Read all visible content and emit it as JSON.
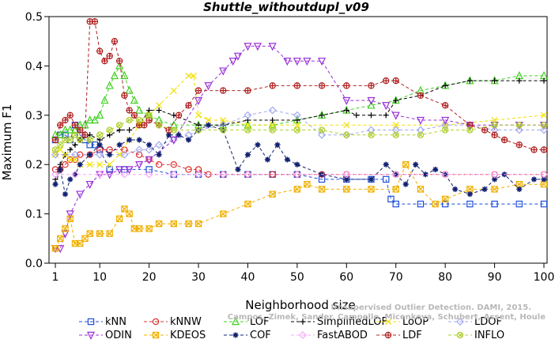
{
  "chart_data": {
    "type": "line",
    "title": "Shuttle_withoutdupl_v09",
    "xlabel": "Neighborhood size",
    "ylabel": "Maximum F1",
    "xlim": [
      0,
      100
    ],
    "ylim": [
      0,
      0.5
    ],
    "xticks": [
      1,
      10,
      20,
      30,
      40,
      50,
      60,
      70,
      80,
      90,
      100
    ],
    "yticks": [
      0.0,
      0.1,
      0.2,
      0.3,
      0.4,
      0.5
    ],
    "ytick_labels": [
      "0.0",
      "0.1",
      "0.2",
      "0.3",
      "0.4",
      "0.5"
    ],
    "grid": false,
    "legend_position": "bottom",
    "watermark": [
      "Unsupervised Outlier Detection. DAMI, 2015.",
      "Campos, Zimek, Sander, Campello, Micenkova, Schubert, Assent, Houle"
    ],
    "series": [
      {
        "name": "kNN",
        "color": "#1f4fd8",
        "marker": "square",
        "x": [
          1,
          2,
          3,
          4,
          5,
          6,
          7,
          8,
          9,
          10,
          12,
          15,
          20,
          25,
          30,
          35,
          40,
          45,
          50,
          55,
          60,
          65,
          68,
          69,
          70,
          75,
          80,
          85,
          90,
          95,
          100
        ],
        "y": [
          0.25,
          0.26,
          0.26,
          0.25,
          0.28,
          0.26,
          0.25,
          0.24,
          0.24,
          0.23,
          0.19,
          0.19,
          0.19,
          0.18,
          0.18,
          0.18,
          0.18,
          0.18,
          0.18,
          0.17,
          0.17,
          0.17,
          0.17,
          0.13,
          0.12,
          0.12,
          0.12,
          0.12,
          0.12,
          0.12,
          0.12
        ]
      },
      {
        "name": "kNNW",
        "color": "#e03030",
        "marker": "circle",
        "x": [
          1,
          2,
          3,
          4,
          5,
          6,
          8,
          10,
          12,
          15,
          18,
          20,
          22,
          25,
          28,
          30,
          32,
          35,
          40,
          45,
          50,
          55,
          60,
          70,
          80,
          90,
          100
        ],
        "y": [
          0.19,
          0.19,
          0.2,
          0.21,
          0.21,
          0.22,
          0.22,
          0.23,
          0.23,
          0.23,
          0.22,
          0.21,
          0.2,
          0.2,
          0.19,
          0.19,
          0.18,
          0.18,
          0.18,
          0.18,
          0.18,
          0.18,
          0.18,
          0.18,
          0.18,
          0.18,
          0.18
        ]
      },
      {
        "name": "LOF",
        "color": "#40d020",
        "marker": "triangle",
        "x": [
          1,
          2,
          3,
          4,
          5,
          6,
          7,
          8,
          9,
          10,
          11,
          12,
          13,
          14,
          15,
          16,
          17,
          18,
          20,
          22,
          25,
          30,
          35,
          40,
          45,
          50,
          55,
          60,
          65,
          70,
          75,
          80,
          85,
          90,
          95,
          100
        ],
        "y": [
          0.26,
          0.26,
          0.27,
          0.27,
          0.27,
          0.28,
          0.28,
          0.29,
          0.29,
          0.3,
          0.33,
          0.36,
          0.38,
          0.4,
          0.38,
          0.35,
          0.33,
          0.31,
          0.3,
          0.29,
          0.28,
          0.28,
          0.28,
          0.28,
          0.28,
          0.29,
          0.3,
          0.31,
          0.32,
          0.33,
          0.35,
          0.36,
          0.37,
          0.37,
          0.38,
          0.38
        ]
      },
      {
        "name": "SimplifiedLOF",
        "color": "#000000",
        "marker": "plus",
        "x": [
          1,
          2,
          3,
          4,
          5,
          6,
          8,
          10,
          12,
          14,
          16,
          18,
          20,
          22,
          25,
          30,
          35,
          40,
          45,
          50,
          55,
          60,
          62,
          65,
          68,
          70,
          75,
          80,
          85,
          90,
          95,
          100
        ],
        "y": [
          0.17,
          0.2,
          0.22,
          0.23,
          0.24,
          0.25,
          0.26,
          0.25,
          0.26,
          0.27,
          0.27,
          0.28,
          0.31,
          0.31,
          0.3,
          0.28,
          0.28,
          0.29,
          0.29,
          0.29,
          0.3,
          0.31,
          0.3,
          0.3,
          0.3,
          0.33,
          0.34,
          0.36,
          0.37,
          0.37,
          0.37,
          0.37
        ]
      },
      {
        "name": "LoOP",
        "color": "#f0e000",
        "marker": "cross",
        "x": [
          1,
          2,
          3,
          4,
          5,
          6,
          8,
          10,
          12,
          14,
          16,
          18,
          20,
          22,
          25,
          28,
          29,
          30,
          32,
          35,
          40,
          45,
          50,
          60,
          70,
          80,
          90,
          100
        ],
        "y": [
          0.22,
          0.23,
          0.22,
          0.21,
          0.21,
          0.2,
          0.2,
          0.2,
          0.2,
          0.22,
          0.25,
          0.28,
          0.3,
          0.32,
          0.35,
          0.38,
          0.38,
          0.3,
          0.29,
          0.29,
          0.28,
          0.28,
          0.28,
          0.28,
          0.28,
          0.28,
          0.29,
          0.3
        ]
      },
      {
        "name": "LDOF",
        "color": "#a0a8f0",
        "marker": "diamond",
        "x": [
          1,
          5,
          10,
          15,
          18,
          20,
          22,
          25,
          28,
          30,
          35,
          40,
          45,
          50,
          55,
          60,
          65,
          70,
          75,
          80,
          85,
          90,
          95,
          100
        ],
        "y": [
          0.22,
          0.22,
          0.22,
          0.22,
          0.23,
          0.23,
          0.24,
          0.25,
          0.26,
          0.27,
          0.28,
          0.3,
          0.31,
          0.3,
          0.26,
          0.26,
          0.27,
          0.27,
          0.27,
          0.28,
          0.28,
          0.27,
          0.27,
          0.27
        ]
      },
      {
        "name": "ODIN",
        "color": "#9a30d8",
        "marker": "triangle-down",
        "x": [
          1,
          2,
          3,
          4,
          6,
          8,
          10,
          12,
          14,
          16,
          18,
          20,
          25,
          30,
          32,
          35,
          37,
          38,
          40,
          42,
          45,
          48,
          50,
          52,
          55,
          60,
          65,
          68,
          70,
          75,
          80,
          85,
          90,
          95,
          100
        ],
        "y": [
          0.03,
          0.03,
          0.06,
          0.1,
          0.14,
          0.16,
          0.18,
          0.18,
          0.19,
          0.19,
          0.2,
          0.21,
          0.25,
          0.33,
          0.36,
          0.39,
          0.41,
          0.42,
          0.44,
          0.44,
          0.44,
          0.41,
          0.41,
          0.41,
          0.41,
          0.33,
          0.33,
          0.32,
          0.3,
          0.29,
          0.29,
          0.28,
          0.28,
          0.28,
          0.28
        ]
      },
      {
        "name": "KDEOS",
        "color": "#f0b000",
        "marker": "square-x",
        "x": [
          1,
          2,
          3,
          4,
          5,
          6,
          7,
          8,
          10,
          12,
          14,
          15,
          16,
          17,
          18,
          20,
          22,
          25,
          28,
          30,
          35,
          40,
          45,
          50,
          52,
          55,
          60,
          65,
          70,
          72,
          75,
          78,
          80,
          85,
          90,
          95,
          100
        ],
        "y": [
          0.03,
          0.05,
          0.07,
          0.09,
          0.04,
          0.04,
          0.05,
          0.06,
          0.06,
          0.06,
          0.09,
          0.11,
          0.1,
          0.07,
          0.07,
          0.07,
          0.08,
          0.08,
          0.08,
          0.08,
          0.1,
          0.12,
          0.14,
          0.15,
          0.16,
          0.15,
          0.15,
          0.15,
          0.15,
          0.2,
          0.15,
          0.12,
          0.13,
          0.15,
          0.15,
          0.16,
          0.16
        ]
      },
      {
        "name": "COF",
        "color": "#102070",
        "marker": "star",
        "x": [
          1,
          2,
          3,
          4,
          5,
          6,
          8,
          10,
          12,
          14,
          16,
          18,
          20,
          22,
          24,
          26,
          28,
          30,
          32,
          35,
          38,
          40,
          42,
          44,
          46,
          48,
          50,
          55,
          60,
          65,
          68,
          70,
          72,
          74,
          76,
          78,
          80,
          82,
          85,
          88,
          90,
          92,
          95,
          98,
          100
        ],
        "y": [
          0.16,
          0.19,
          0.14,
          0.17,
          0.18,
          0.2,
          0.22,
          0.24,
          0.22,
          0.24,
          0.25,
          0.25,
          0.24,
          0.22,
          0.26,
          0.26,
          0.25,
          0.27,
          0.28,
          0.27,
          0.19,
          0.22,
          0.24,
          0.21,
          0.24,
          0.21,
          0.2,
          0.18,
          0.17,
          0.17,
          0.2,
          0.18,
          0.16,
          0.2,
          0.18,
          0.19,
          0.18,
          0.15,
          0.14,
          0.15,
          0.17,
          0.18,
          0.15,
          0.17,
          0.17
        ]
      },
      {
        "name": "FastABOD",
        "color": "#f8a8f8",
        "marker": "diamond",
        "x": [
          1,
          5,
          10,
          15,
          20,
          25,
          30,
          35,
          40,
          50,
          60,
          70,
          80,
          90,
          100
        ],
        "y": [
          0.18,
          0.18,
          0.18,
          0.18,
          0.18,
          0.18,
          0.18,
          0.18,
          0.18,
          0.18,
          0.18,
          0.18,
          0.18,
          0.18,
          0.18
        ]
      },
      {
        "name": "LDF",
        "color": "#b02020",
        "marker": "circle-plus",
        "x": [
          1,
          2,
          3,
          4,
          5,
          6,
          7,
          8,
          9,
          10,
          11,
          12,
          13,
          14,
          15,
          16,
          17,
          18,
          19,
          20,
          22,
          24,
          26,
          28,
          30,
          35,
          40,
          45,
          50,
          55,
          60,
          65,
          68,
          70,
          75,
          80,
          85,
          88,
          90,
          92,
          95,
          98,
          100
        ],
        "y": [
          0.25,
          0.28,
          0.29,
          0.3,
          0.28,
          0.27,
          0.26,
          0.49,
          0.49,
          0.43,
          0.41,
          0.42,
          0.45,
          0.41,
          0.34,
          0.31,
          0.3,
          0.28,
          0.28,
          0.29,
          0.28,
          0.27,
          0.3,
          0.32,
          0.35,
          0.35,
          0.35,
          0.36,
          0.36,
          0.36,
          0.36,
          0.36,
          0.37,
          0.37,
          0.34,
          0.32,
          0.28,
          0.27,
          0.26,
          0.25,
          0.24,
          0.23,
          0.23
        ]
      },
      {
        "name": "INFLO",
        "color": "#b0d030",
        "marker": "circle-x",
        "x": [
          1,
          2,
          3,
          4,
          5,
          6,
          8,
          10,
          12,
          14,
          16,
          18,
          20,
          22,
          25,
          30,
          35,
          40,
          45,
          50,
          55,
          60,
          65,
          70,
          75,
          80,
          85,
          90,
          95,
          100
        ],
        "y": [
          0.23,
          0.24,
          0.25,
          0.25,
          0.26,
          0.25,
          0.25,
          0.26,
          0.27,
          0.28,
          0.29,
          0.29,
          0.3,
          0.28,
          0.27,
          0.27,
          0.27,
          0.27,
          0.27,
          0.27,
          0.27,
          0.26,
          0.26,
          0.26,
          0.26,
          0.27,
          0.27,
          0.28,
          0.28,
          0.28
        ]
      }
    ]
  }
}
